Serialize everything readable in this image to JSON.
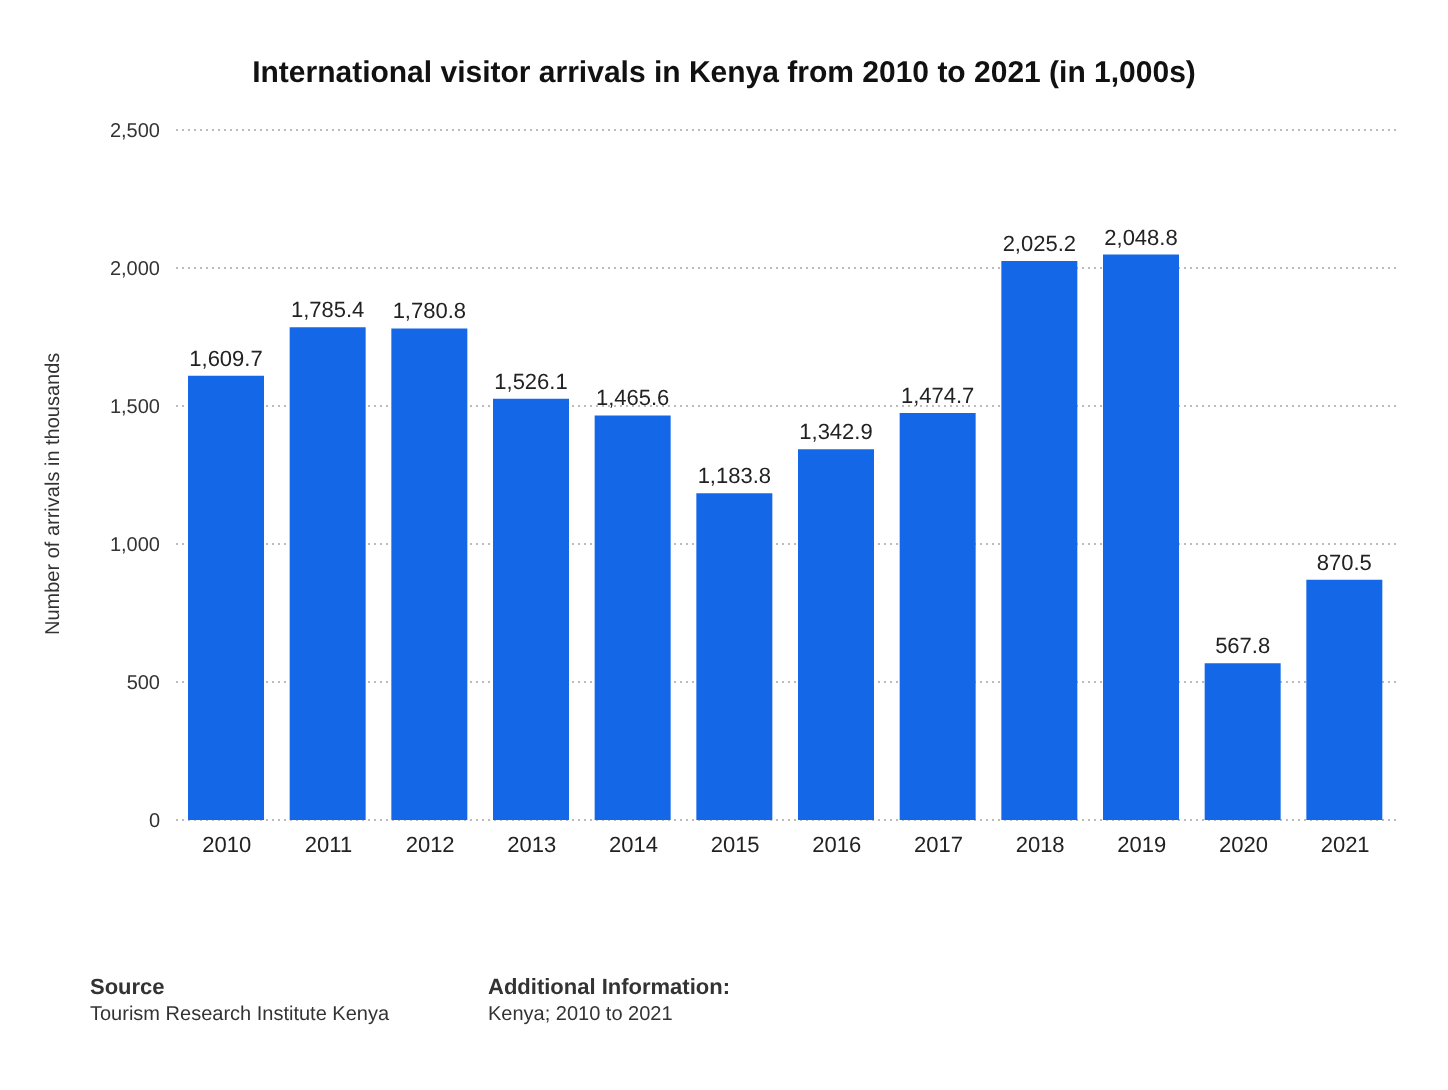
{
  "chart_data": {
    "type": "bar",
    "title": "International visitor arrivals in Kenya from 2010 to 2021 (in 1,000s)",
    "ylabel": "Number of arrivals in thousands",
    "categories": [
      "2010",
      "2011",
      "2012",
      "2013",
      "2014",
      "2015",
      "2016",
      "2017",
      "2018",
      "2019",
      "2020",
      "2021"
    ],
    "values": [
      1609.7,
      1785.4,
      1780.8,
      1526.1,
      1465.6,
      1183.8,
      1342.9,
      1474.7,
      2025.2,
      2048.8,
      567.8,
      870.5
    ],
    "color": "#1468e8",
    "ylim": [
      0,
      2500
    ],
    "yticks": [
      {
        "value": 0,
        "label": "0"
      },
      {
        "value": 500,
        "label": "500"
      },
      {
        "value": 1000,
        "label": "1,000"
      },
      {
        "value": 1500,
        "label": "1,500"
      },
      {
        "value": 2000,
        "label": "2,000"
      },
      {
        "value": 2500,
        "label": "2,500"
      }
    ],
    "value_labels": [
      "1,609.7",
      "1,785.4",
      "1,780.8",
      "1,526.1",
      "1,465.6",
      "1,183.8",
      "1,342.9",
      "1,474.7",
      "2,025.2",
      "2,048.8",
      "567.8",
      "870.5"
    ],
    "grid": "y",
    "legend": false,
    "annotations": [
      "Source",
      "Tourism Research Institute Kenya",
      "Additional Information:",
      "Kenya; 2010 to 2021"
    ]
  }
}
